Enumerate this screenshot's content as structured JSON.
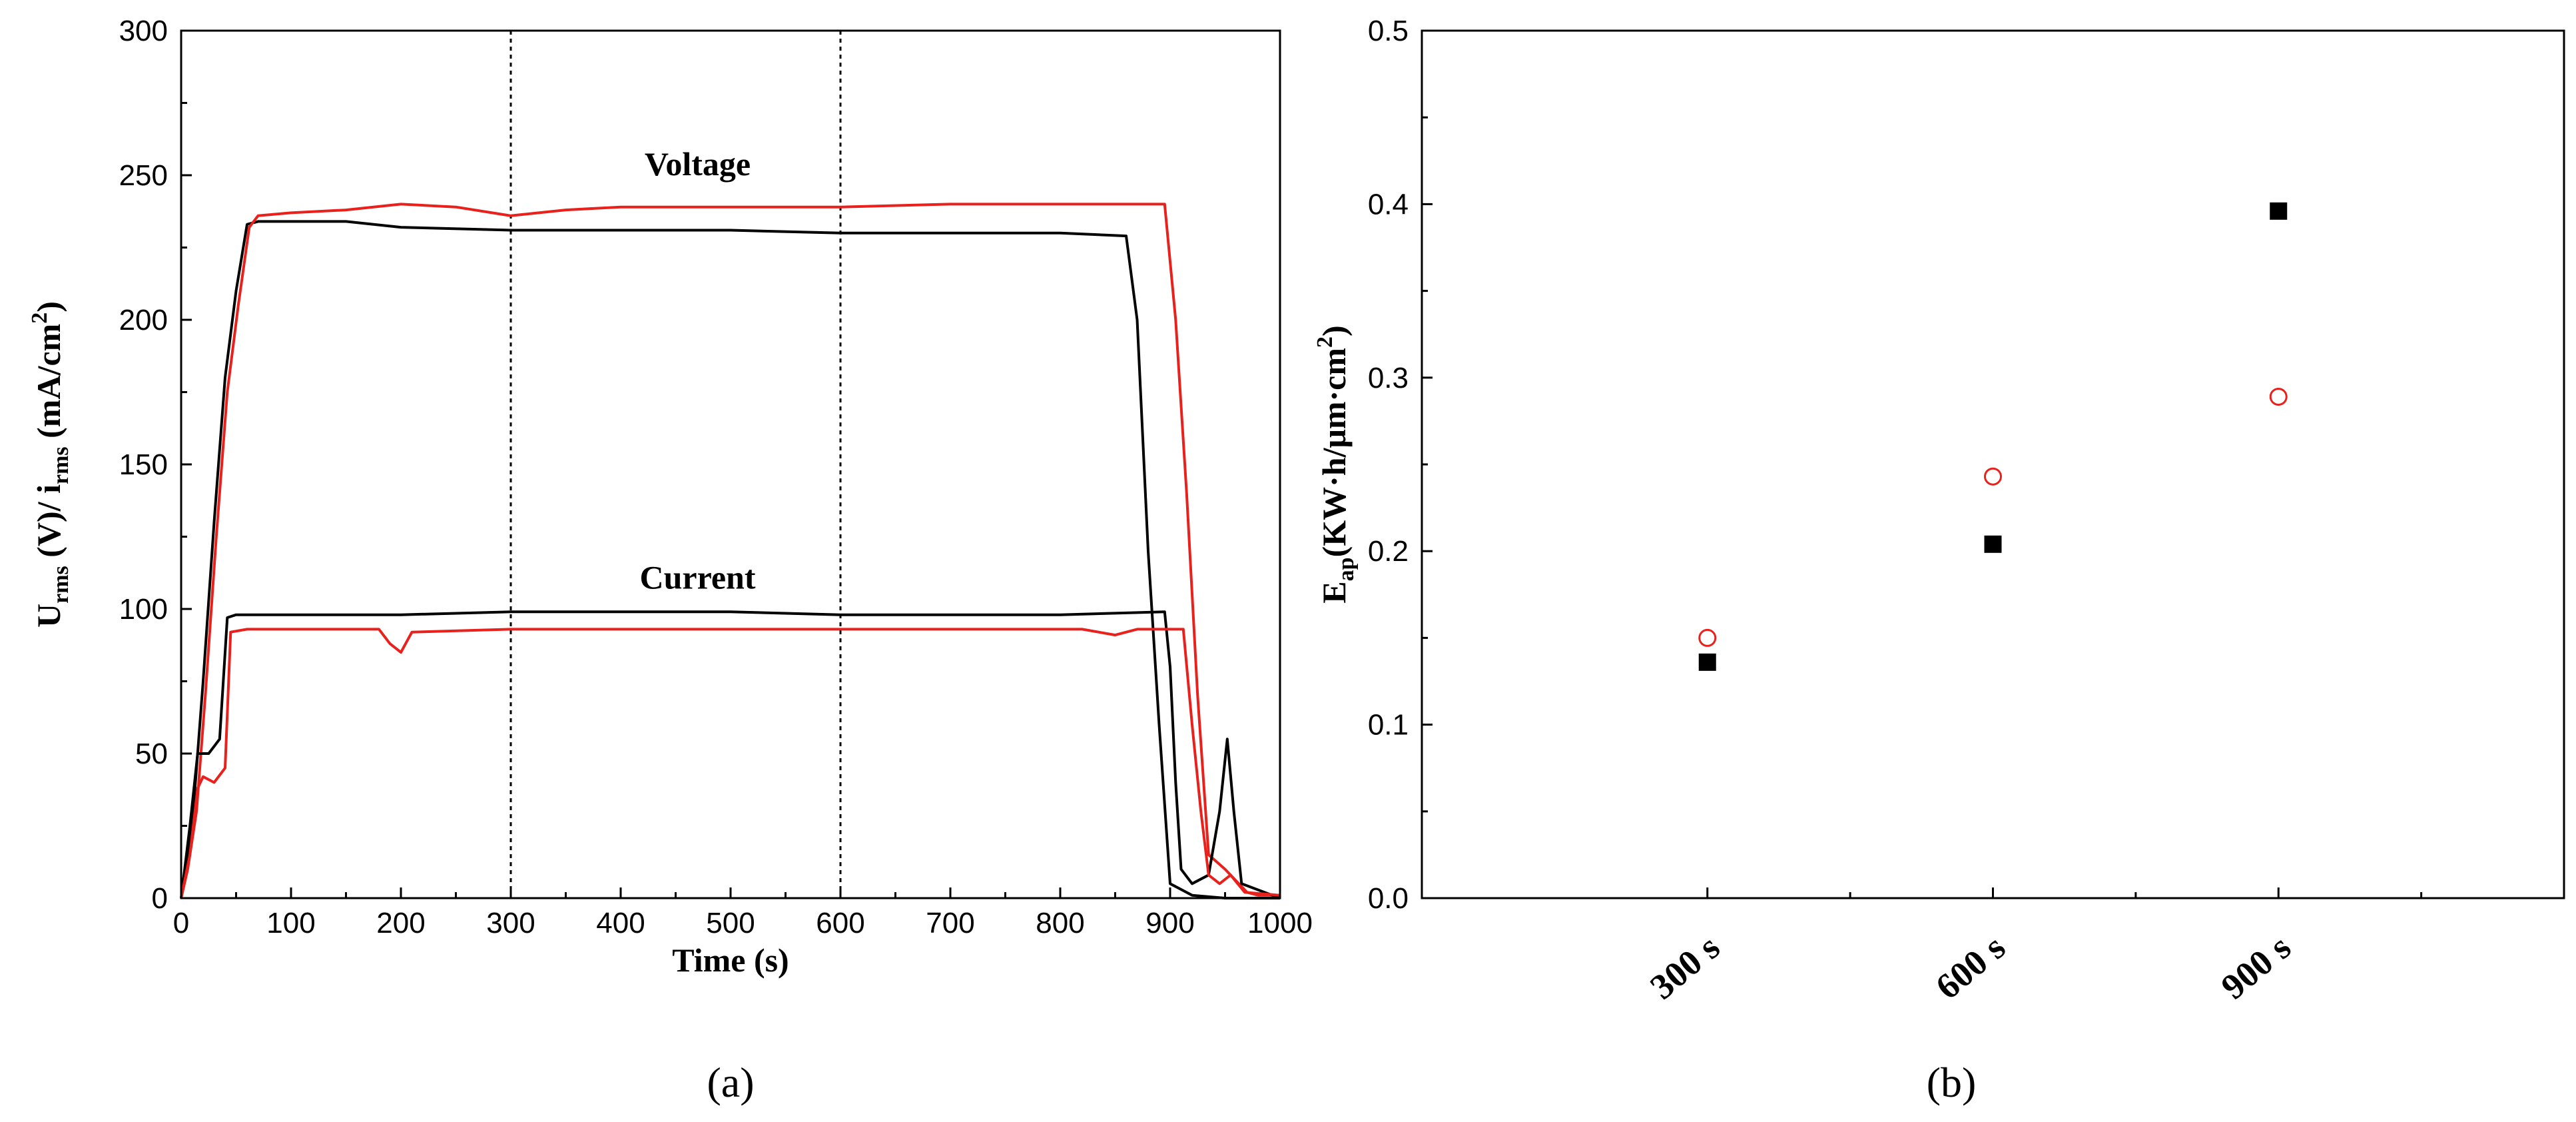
{
  "chart_data": [
    {
      "id": "a",
      "type": "line",
      "caption": "(a)",
      "xlabel": "Time (s)",
      "ylabel_main": "U",
      "ylabel_sub1": "rms",
      "ylabel_mid": " (V)/ i",
      "ylabel_sub2": "rms",
      "ylabel_unit": " (mA/cm",
      "ylabel_sup": "2",
      "ylabel_close": ")",
      "xlim": [
        0,
        1000
      ],
      "ylim": [
        0,
        300
      ],
      "xticks": [
        "0",
        "100",
        "200",
        "300",
        "400",
        "500",
        "600",
        "700",
        "800",
        "900",
        "1000"
      ],
      "yticks": [
        "0",
        "50",
        "100",
        "150",
        "200",
        "250",
        "300"
      ],
      "vlines": [
        300,
        600
      ],
      "annotations": [
        {
          "text": "Voltage",
          "x": 470,
          "y": 250
        },
        {
          "text": "Current",
          "x": 470,
          "y": 107
        }
      ],
      "colors": {
        "black": "#000000",
        "red": "#e8211c"
      },
      "series": [
        {
          "name": "Voltage (black)",
          "color": "#000000",
          "points": [
            [
              0,
              0
            ],
            [
              5,
              12
            ],
            [
              12,
              35
            ],
            [
              20,
              75
            ],
            [
              30,
              130
            ],
            [
              40,
              180
            ],
            [
              50,
              210
            ],
            [
              60,
              233
            ],
            [
              70,
              234
            ],
            [
              100,
              234
            ],
            [
              150,
              234
            ],
            [
              200,
              232
            ],
            [
              300,
              231
            ],
            [
              400,
              231
            ],
            [
              500,
              231
            ],
            [
              600,
              230
            ],
            [
              700,
              230
            ],
            [
              800,
              230
            ],
            [
              860,
              229
            ],
            [
              870,
              200
            ],
            [
              880,
              120
            ],
            [
              890,
              60
            ],
            [
              900,
              5
            ],
            [
              920,
              1
            ],
            [
              950,
              0
            ],
            [
              1000,
              0
            ]
          ]
        },
        {
          "name": "Voltage (red)",
          "color": "#e8211c",
          "points": [
            [
              0,
              0
            ],
            [
              6,
              10
            ],
            [
              14,
              30
            ],
            [
              22,
              70
            ],
            [
              32,
              125
            ],
            [
              42,
              175
            ],
            [
              52,
              205
            ],
            [
              62,
              232
            ],
            [
              70,
              236
            ],
            [
              100,
              237
            ],
            [
              150,
              238
            ],
            [
              200,
              240
            ],
            [
              250,
              239
            ],
            [
              300,
              236
            ],
            [
              350,
              238
            ],
            [
              400,
              239
            ],
            [
              500,
              239
            ],
            [
              600,
              239
            ],
            [
              700,
              240
            ],
            [
              800,
              240
            ],
            [
              895,
              240
            ],
            [
              905,
              200
            ],
            [
              915,
              140
            ],
            [
              925,
              70
            ],
            [
              935,
              15
            ],
            [
              950,
              10
            ],
            [
              970,
              2
            ],
            [
              980,
              1
            ],
            [
              1000,
              1
            ]
          ]
        },
        {
          "name": "Current (black)",
          "color": "#000000",
          "points": [
            [
              0,
              0
            ],
            [
              8,
              25
            ],
            [
              15,
              50
            ],
            [
              25,
              50
            ],
            [
              35,
              55
            ],
            [
              42,
              97
            ],
            [
              50,
              98
            ],
            [
              100,
              98
            ],
            [
              200,
              98
            ],
            [
              300,
              99
            ],
            [
              400,
              99
            ],
            [
              500,
              99
            ],
            [
              600,
              98
            ],
            [
              700,
              98
            ],
            [
              800,
              98
            ],
            [
              895,
              99
            ],
            [
              900,
              80
            ],
            [
              905,
              40
            ],
            [
              910,
              10
            ],
            [
              920,
              5
            ],
            [
              935,
              8
            ],
            [
              945,
              30
            ],
            [
              952,
              55
            ],
            [
              958,
              30
            ],
            [
              965,
              5
            ],
            [
              1000,
              0
            ]
          ]
        },
        {
          "name": "Current (red)",
          "color": "#e8211c",
          "points": [
            [
              0,
              0
            ],
            [
              8,
              15
            ],
            [
              15,
              38
            ],
            [
              20,
              42
            ],
            [
              30,
              40
            ],
            [
              40,
              45
            ],
            [
              45,
              92
            ],
            [
              60,
              93
            ],
            [
              100,
              93
            ],
            [
              180,
              93
            ],
            [
              190,
              88
            ],
            [
              200,
              85
            ],
            [
              210,
              92
            ],
            [
              300,
              93
            ],
            [
              400,
              93
            ],
            [
              500,
              93
            ],
            [
              600,
              93
            ],
            [
              700,
              93
            ],
            [
              820,
              93
            ],
            [
              850,
              91
            ],
            [
              870,
              93
            ],
            [
              912,
              93
            ],
            [
              920,
              60
            ],
            [
              928,
              30
            ],
            [
              935,
              8
            ],
            [
              945,
              5
            ],
            [
              955,
              8
            ],
            [
              968,
              2
            ],
            [
              1000,
              1
            ]
          ]
        }
      ]
    },
    {
      "id": "b",
      "type": "scatter",
      "caption": "(b)",
      "ylabel_main": "E",
      "ylabel_sub": "ap",
      "ylabel_unit": "(KW·h/μm·cm",
      "ylabel_sup": "2",
      "ylabel_close": ")",
      "ylim": [
        0.0,
        0.5
      ],
      "yticks": [
        "0.0",
        "0.1",
        "0.2",
        "0.3",
        "0.4",
        "0.5"
      ],
      "categories": [
        "300 s",
        "600 s",
        "900 s"
      ],
      "series": [
        {
          "name": "Filled squares",
          "marker": "square-filled",
          "color": "#000000",
          "values": [
            0.136,
            0.204,
            0.396
          ]
        },
        {
          "name": "Open circles",
          "marker": "circle-open",
          "color": "#e8211c",
          "values": [
            0.15,
            0.243,
            0.289
          ]
        }
      ]
    }
  ]
}
